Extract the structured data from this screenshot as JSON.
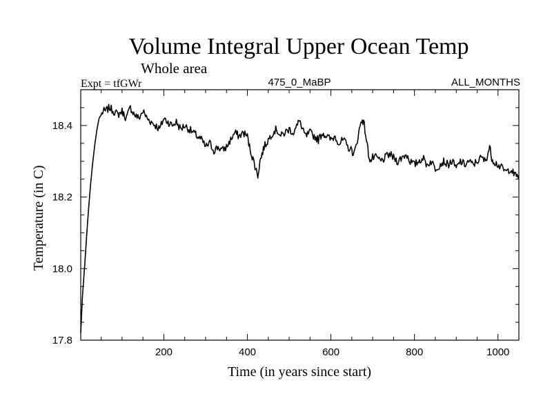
{
  "chart_data": {
    "type": "line",
    "title": "Volume Integral Upper Ocean Temp",
    "subtitle": "Whole area",
    "left_label": "Expt = tfGWr",
    "center_label": "475_0_MaBP",
    "right_label": "ALL_MONTHS",
    "xlabel": "Time (in years since start)",
    "ylabel": "Temperature (in C)",
    "xlim": [
      1,
      1050
    ],
    "ylim": [
      17.8,
      18.5
    ],
    "xticks": [
      200,
      400,
      600,
      800,
      1000
    ],
    "xtick_labels": [
      "200",
      "400",
      "600",
      "800",
      "1000"
    ],
    "yticks": [
      17.8,
      18.0,
      18.2,
      18.4
    ],
    "ytick_labels": [
      "17.8",
      "18.0",
      "18.2",
      "18.4"
    ],
    "grid": false,
    "series": [
      {
        "name": "Volume integral upper ocean temperature",
        "x": [
          1,
          5,
          10,
          15,
          20,
          25,
          30,
          35,
          40,
          45,
          50,
          55,
          60,
          70,
          80,
          90,
          100,
          110,
          120,
          130,
          140,
          150,
          160,
          170,
          180,
          190,
          200,
          210,
          220,
          230,
          240,
          250,
          260,
          270,
          280,
          290,
          300,
          310,
          320,
          330,
          340,
          350,
          360,
          370,
          380,
          390,
          400,
          405,
          410,
          415,
          420,
          425,
          430,
          435,
          440,
          450,
          460,
          470,
          480,
          490,
          500,
          510,
          520,
          525,
          530,
          540,
          550,
          560,
          570,
          580,
          590,
          600,
          610,
          620,
          630,
          640,
          650,
          655,
          660,
          665,
          670,
          675,
          680,
          685,
          690,
          695,
          700,
          710,
          720,
          730,
          740,
          750,
          760,
          770,
          780,
          790,
          800,
          810,
          820,
          830,
          840,
          850,
          860,
          870,
          880,
          890,
          900,
          910,
          920,
          930,
          940,
          950,
          960,
          970,
          975,
          980,
          985,
          990,
          1000,
          1010,
          1020,
          1030,
          1040,
          1050
        ],
        "y": [
          17.82,
          17.92,
          18.0,
          18.09,
          18.17,
          18.24,
          18.3,
          18.35,
          18.39,
          18.42,
          18.43,
          18.44,
          18.44,
          18.45,
          18.44,
          18.43,
          18.44,
          18.42,
          18.45,
          18.43,
          18.42,
          18.44,
          18.42,
          18.41,
          18.4,
          18.39,
          18.42,
          18.41,
          18.4,
          18.41,
          18.39,
          18.4,
          18.39,
          18.38,
          18.37,
          18.36,
          18.34,
          18.35,
          18.33,
          18.34,
          18.33,
          18.34,
          18.36,
          18.38,
          18.37,
          18.38,
          18.37,
          18.34,
          18.32,
          18.3,
          18.28,
          18.26,
          18.3,
          18.32,
          18.34,
          18.36,
          18.38,
          18.39,
          18.37,
          18.38,
          18.39,
          18.38,
          18.4,
          18.42,
          18.39,
          18.37,
          18.38,
          18.37,
          18.36,
          18.38,
          18.37,
          18.36,
          18.37,
          18.35,
          18.36,
          18.34,
          18.33,
          18.32,
          18.34,
          18.37,
          18.4,
          18.42,
          18.4,
          18.36,
          18.32,
          18.3,
          18.31,
          18.31,
          18.3,
          18.31,
          18.32,
          18.31,
          18.3,
          18.31,
          18.32,
          18.3,
          18.29,
          18.3,
          18.31,
          18.29,
          18.3,
          18.28,
          18.29,
          18.3,
          18.29,
          18.3,
          18.28,
          18.3,
          18.29,
          18.3,
          18.29,
          18.3,
          18.31,
          18.3,
          18.32,
          18.34,
          18.31,
          18.3,
          18.29,
          18.28,
          18.27,
          18.28,
          18.26,
          18.26
        ]
      }
    ]
  }
}
